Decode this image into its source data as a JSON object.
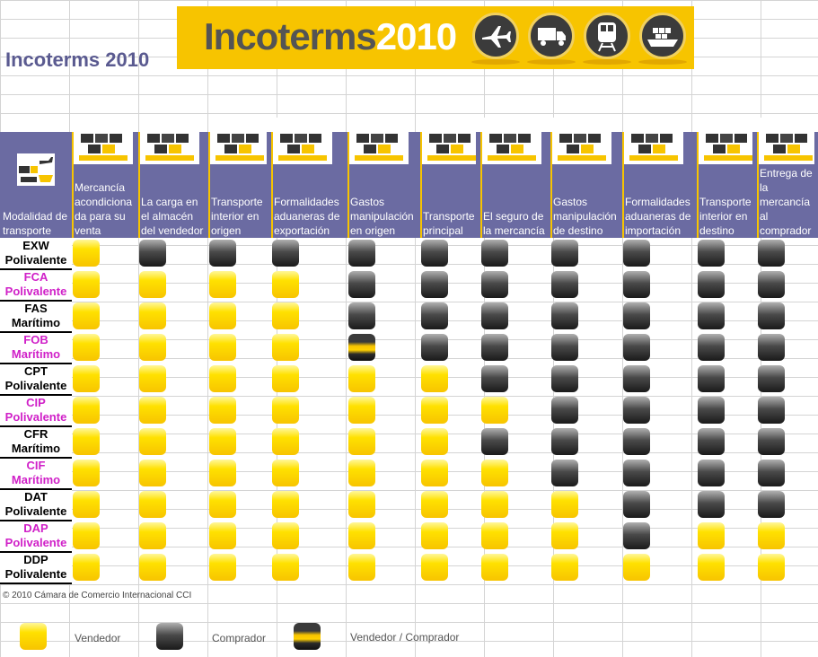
{
  "title": "Incoterms 2010",
  "banner": {
    "part1": "Incoterms",
    "part2": "2010"
  },
  "corner_label": "Modalidad de transporte",
  "columns": [
    "Mercancía acondiciona da para su venta",
    "La carga en el almacén del vendedor",
    "Transporte interior en origen",
    "Formalidades aduaneras de exportación",
    "Gastos manipulación en origen",
    "Transporte principal",
    "El seguro de la mercancía",
    "Gastos manipulación de destino",
    "Formalidades aduaneras de importación",
    "Transporte interior en destino",
    "Entrega de la mercancía al comprador"
  ],
  "rows": [
    {
      "code": "EXW",
      "mode": "Polivalente",
      "cells": "VCCCCCCCCCC"
    },
    {
      "code": "FCA",
      "mode": "Polivalente",
      "cells": "VVVVCCCCCCC"
    },
    {
      "code": "FAS",
      "mode": "Marítimo",
      "cells": "VVVVCCCCCCC"
    },
    {
      "code": "FOB",
      "mode": "Marítimo",
      "cells": "VVVVXCCCCCC"
    },
    {
      "code": "CPT",
      "mode": "Polivalente",
      "cells": "VVVVVVCCCCC"
    },
    {
      "code": "CIP",
      "mode": "Polivalente",
      "cells": "VVVVVVVCCCC"
    },
    {
      "code": "CFR",
      "mode": "Marítimo",
      "cells": "VVVVVVCCCCC"
    },
    {
      "code": "CIF",
      "mode": "Marítimo",
      "cells": "VVVVVVVCCCC"
    },
    {
      "code": "DAT",
      "mode": "Polivalente",
      "cells": "VVVVVVVVCCC"
    },
    {
      "code": "DAP",
      "mode": "Polivalente",
      "cells": "VVVVVVVVCVV"
    },
    {
      "code": "DDP",
      "mode": "Polivalente",
      "cells": "VVVVVVVVVVV"
    }
  ],
  "copyright": "© 2010 Cámara de Comercio Internacional CCI",
  "legend": {
    "seller": "Vendedor",
    "buyer": "Comprador",
    "both": "Vendedor / Comprador"
  },
  "colors": {
    "header": "#6b6ba2",
    "accent": "#f7c400",
    "pink": "#d020c8",
    "title": "#5a5a90"
  }
}
